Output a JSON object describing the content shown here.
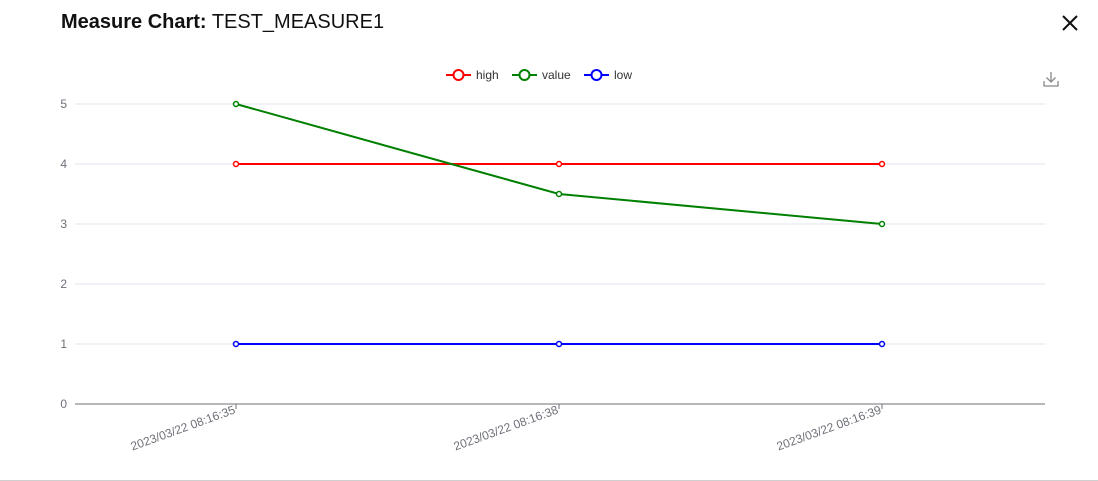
{
  "dialog": {
    "title_label": "Measure Chart:",
    "title_value": "TEST_MEASURE1",
    "close_icon": "close-icon",
    "download_icon": "download-icon"
  },
  "chart_data": {
    "type": "line",
    "categories": [
      "2023/03/22 08:16:35",
      "2023/03/22 08:16:38",
      "2023/03/22 08:16:39"
    ],
    "series": [
      {
        "name": "high",
        "values": [
          4,
          4,
          4
        ],
        "color": "#ff0000"
      },
      {
        "name": "value",
        "values": [
          5,
          3.5,
          3
        ],
        "color": "#008000"
      },
      {
        "name": "low",
        "values": [
          1,
          1,
          1
        ],
        "color": "#0000ff"
      }
    ],
    "yticks": [
      0,
      1,
      2,
      3,
      4,
      5
    ],
    "ylim": [
      0,
      5
    ],
    "grid": true,
    "legend_position": "top-center",
    "xlabel": "",
    "ylabel": ""
  }
}
